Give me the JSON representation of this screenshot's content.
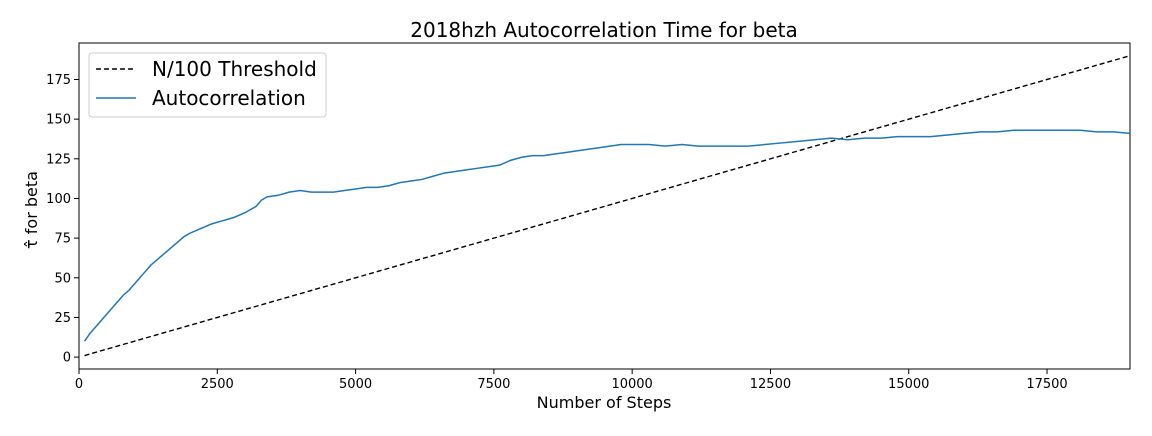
{
  "chart_data": {
    "type": "line",
    "title": "2018hzh Autocorrelation Time for beta",
    "xlabel": "Number of Steps",
    "ylabel": "τ̂ for beta",
    "xlim": [
      0,
      19000
    ],
    "ylim": [
      -7.5,
      198
    ],
    "xticks": [
      0,
      2500,
      5000,
      7500,
      10000,
      12500,
      15000,
      17500
    ],
    "xtick_labels": [
      "0",
      "2500",
      "5000",
      "7500",
      "10000",
      "12500",
      "15000",
      "17500"
    ],
    "yticks": [
      0,
      25,
      50,
      75,
      100,
      125,
      150,
      175
    ],
    "ytick_labels": [
      "0",
      "25",
      "50",
      "75",
      "100",
      "125",
      "150",
      "175"
    ],
    "grid": false,
    "legend_position": "top-left",
    "series": [
      {
        "name": "N/100 Threshold",
        "style": "dashed",
        "color": "#000000",
        "x": [
          100,
          19000
        ],
        "y": [
          1,
          190
        ]
      },
      {
        "name": "Autocorrelation",
        "style": "solid",
        "color": "#1f77b4",
        "x": [
          100,
          200,
          300,
          400,
          500,
          600,
          700,
          800,
          900,
          1000,
          1100,
          1200,
          1300,
          1400,
          1500,
          1600,
          1700,
          1800,
          1900,
          2000,
          2200,
          2400,
          2600,
          2800,
          3000,
          3200,
          3300,
          3400,
          3600,
          3800,
          4000,
          4200,
          4400,
          4600,
          4800,
          5000,
          5200,
          5400,
          5600,
          5800,
          6000,
          6200,
          6400,
          6600,
          6800,
          7000,
          7200,
          7400,
          7600,
          7800,
          8000,
          8200,
          8400,
          8600,
          8800,
          9000,
          9200,
          9400,
          9600,
          9800,
          10000,
          10300,
          10600,
          10900,
          11200,
          11500,
          11800,
          12100,
          12400,
          12700,
          13000,
          13300,
          13600,
          13900,
          14200,
          14500,
          14800,
          15100,
          15400,
          15700,
          16000,
          16300,
          16600,
          16900,
          17200,
          17500,
          17800,
          18100,
          18400,
          18700,
          19000
        ],
        "y": [
          10,
          15,
          19,
          23,
          27,
          31,
          35,
          39,
          42,
          46,
          50,
          54,
          58,
          61,
          64,
          67,
          70,
          73,
          76,
          78,
          81,
          84,
          86,
          88,
          91,
          95,
          99,
          101,
          102,
          104,
          105,
          104,
          104,
          104,
          105,
          106,
          107,
          107,
          108,
          110,
          111,
          112,
          114,
          116,
          117,
          118,
          119,
          120,
          121,
          124,
          126,
          127,
          127,
          128,
          129,
          130,
          131,
          132,
          133,
          134,
          134,
          134,
          133,
          134,
          133,
          133,
          133,
          133,
          134,
          135,
          136,
          137,
          138,
          137,
          138,
          138,
          139,
          139,
          139,
          140,
          141,
          142,
          142,
          143,
          143,
          143,
          143,
          143,
          142,
          142,
          141
        ]
      }
    ]
  }
}
